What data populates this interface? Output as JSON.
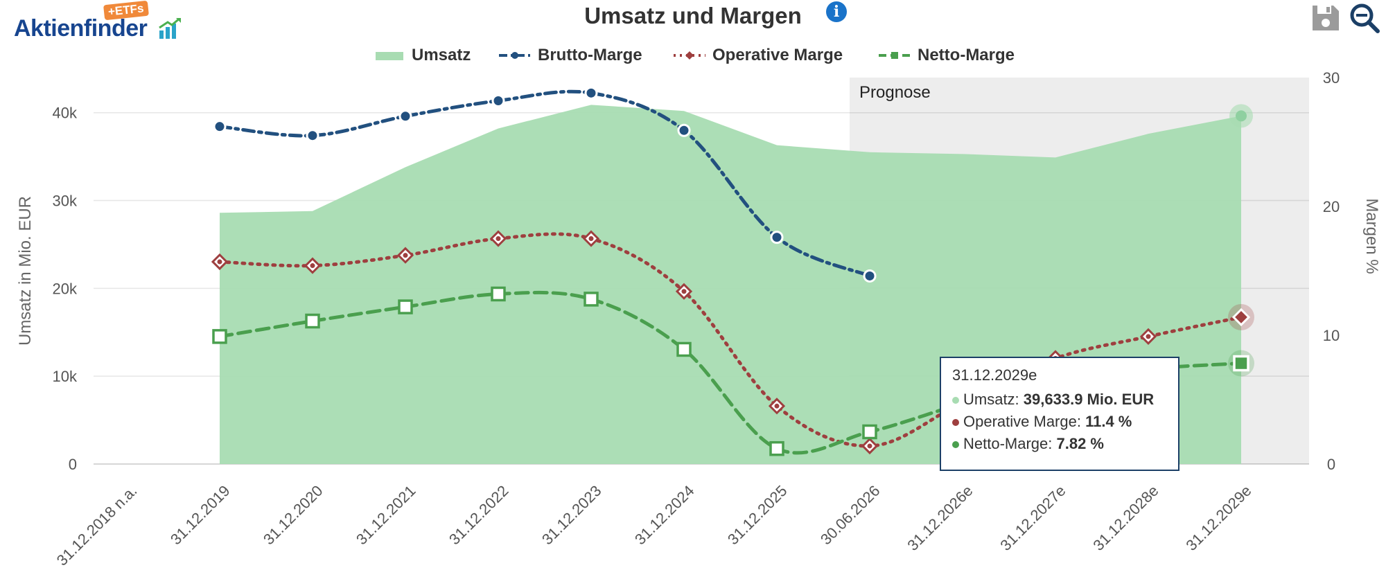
{
  "logo": {
    "text": "Aktienfinder",
    "badge": "+ETFs"
  },
  "header": {
    "title": "Umsatz und Margen"
  },
  "toolbar": {
    "save_icon": "save-icon",
    "zoom_icon": "zoom-out-icon",
    "info_icon": "info-icon"
  },
  "legend": [
    {
      "label": "Umsatz",
      "color": "#a8dcb2",
      "style": "area"
    },
    {
      "label": "Brutto-Marge",
      "color": "#22507f",
      "style": "dash-dot"
    },
    {
      "label": "Operative Marge",
      "color": "#9e3f3f",
      "style": "dot"
    },
    {
      "label": "Netto-Marge",
      "color": "#4a9f4e",
      "style": "dash"
    }
  ],
  "forecast_label": "Prognose",
  "tooltip": {
    "date": "31.12.2029e",
    "rows": [
      {
        "label": "Umsatz: ",
        "value": "39,633.9 Mio. EUR",
        "color": "#a8dcb2"
      },
      {
        "label": "Operative Marge: ",
        "value": "11.4 %",
        "color": "#9e3f3f"
      },
      {
        "label": "Netto-Marge: ",
        "value": "7.82 %",
        "color": "#4a9f4e"
      }
    ]
  },
  "chart_data": {
    "type": "line",
    "categories": [
      "31.12.2018 n.a.",
      "31.12.2019",
      "31.12.2020",
      "31.12.2021",
      "31.12.2022",
      "31.12.2023",
      "31.12.2024",
      "31.12.2025",
      "30.06.2026",
      "31.12.2026e",
      "31.12.2027e",
      "31.12.2028e",
      "31.12.2029e"
    ],
    "ylabel": "Umsatz in Mio. EUR",
    "y2label": "Margen %",
    "ylim": [
      0,
      44000
    ],
    "y2lim": [
      0,
      30
    ],
    "yticks": [
      0,
      10000,
      20000,
      30000,
      40000
    ],
    "ytick_labels": [
      "0",
      "10k",
      "20k",
      "30k",
      "40k"
    ],
    "y2ticks": [
      0,
      10,
      20,
      30
    ],
    "y2tick_labels": [
      "0",
      "10",
      "20",
      "30"
    ],
    "forecast_start_index": 8,
    "series": [
      {
        "name": "Umsatz",
        "axis": "left",
        "kind": "area",
        "color": "#a8dcb2",
        "values": [
          null,
          28600,
          28800,
          33800,
          38200,
          40900,
          40200,
          36300,
          35500,
          35300,
          34900,
          37600,
          39633.9
        ]
      },
      {
        "name": "Brutto-Marge",
        "axis": "right",
        "kind": "line",
        "dash": "dashdot",
        "color": "#22507f",
        "values": [
          null,
          26.2,
          25.5,
          27.0,
          28.2,
          28.8,
          25.9,
          17.6,
          14.6,
          null,
          null,
          null,
          null
        ]
      },
      {
        "name": "Operative Marge",
        "axis": "right",
        "kind": "line",
        "dash": "dot",
        "color": "#9e3f3f",
        "values": [
          null,
          15.7,
          15.4,
          16.2,
          17.5,
          17.5,
          13.4,
          4.5,
          1.4,
          4.8,
          8.2,
          9.9,
          11.4
        ]
      },
      {
        "name": "Netto-Marge",
        "axis": "right",
        "kind": "line",
        "dash": "dash",
        "color": "#4a9f4e",
        "values": [
          null,
          9.9,
          11.1,
          12.2,
          13.2,
          12.8,
          8.9,
          1.2,
          2.5,
          4.7,
          6.6,
          7.4,
          7.82
        ]
      }
    ]
  }
}
